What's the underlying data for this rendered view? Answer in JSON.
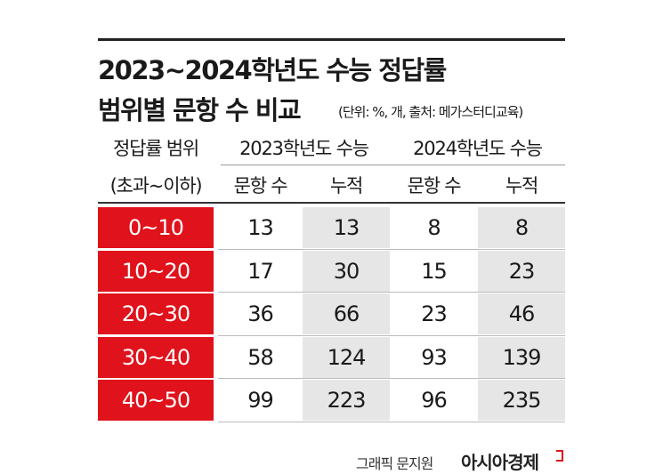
{
  "header": {
    "title": [
      "2023~2024학년도 수능 정답률",
      "범위별 문항 수 비교"
    ],
    "note": "(단위: %, 개, 출처: 메가스터디교육)"
  },
  "table": {
    "group_headers": [
      "정답률 범위",
      "2023학년도 수능",
      "2024학년도 수능"
    ],
    "sub_headers": [
      "(초과~이하)",
      "문항 수",
      "누적",
      "문항 수",
      "누적"
    ],
    "rows": [
      [
        "0~10",
        13,
        13,
        8,
        8
      ],
      [
        "10~20",
        17,
        30,
        15,
        23
      ],
      [
        "20~30",
        36,
        66,
        23,
        46
      ],
      [
        "30~40",
        58,
        124,
        93,
        139
      ],
      [
        "40~50",
        99,
        223,
        96,
        235
      ]
    ]
  },
  "footer": {
    "credit": "그래픽 문지원",
    "brand": "아시아경제"
  }
}
